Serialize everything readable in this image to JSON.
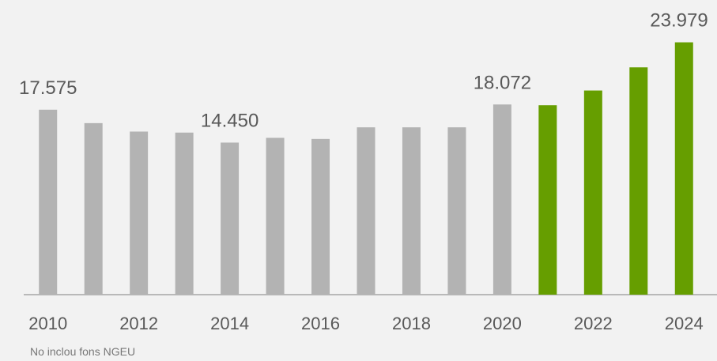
{
  "chart_data": {
    "type": "bar",
    "categories": [
      "2010",
      null,
      "2012",
      null,
      "2014",
      null,
      "2016",
      null,
      "2018",
      null,
      "2020",
      null,
      "2022",
      null,
      "2024"
    ],
    "values": [
      17575,
      16300,
      15500,
      15400,
      14450,
      14900,
      14800,
      15900,
      15900,
      15900,
      18072,
      18000,
      19400,
      21600,
      23979
    ],
    "value_labels": [
      "17.575",
      null,
      null,
      null,
      "14.450",
      null,
      null,
      null,
      null,
      null,
      "18.072",
      null,
      null,
      null,
      "23.979"
    ],
    "colors": [
      "#b3b3b3",
      "#b3b3b3",
      "#b3b3b3",
      "#b3b3b3",
      "#b3b3b3",
      "#b3b3b3",
      "#b3b3b3",
      "#b3b3b3",
      "#b3b3b3",
      "#b3b3b3",
      "#b3b3b3",
      "#669e00",
      "#669e00",
      "#669e00",
      "#669e00"
    ],
    "ylim": [
      0,
      28000
    ],
    "note": "No inclou fons NGEU"
  }
}
